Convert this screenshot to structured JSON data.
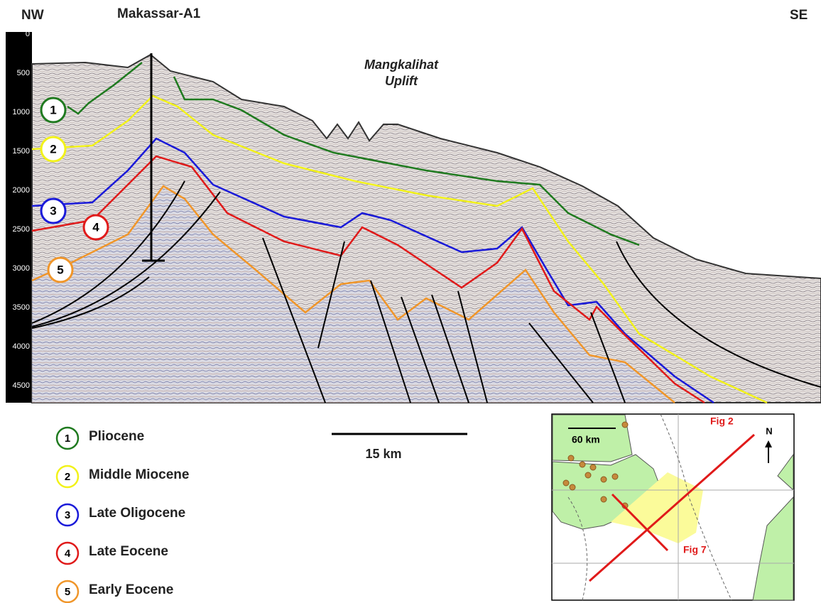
{
  "header": {
    "left": "NW",
    "well": "Makassar-A1",
    "right": "SE"
  },
  "depth_axis": {
    "ticks": [
      0,
      500,
      1000,
      1500,
      2000,
      2500,
      3000,
      3500,
      4000,
      4500
    ]
  },
  "annotation": [
    "Mangkalihat",
    "Uplift"
  ],
  "horizons": [
    {
      "number": 1,
      "name": "Pliocene",
      "color": "#1f7a1f"
    },
    {
      "number": 2,
      "name": "Middle Miocene",
      "color": "#f2f21a"
    },
    {
      "number": 3,
      "name": "Late Oligocene",
      "color": "#1a1ad9"
    },
    {
      "number": 4,
      "name": "Late Eocene",
      "color": "#e01a1a"
    },
    {
      "number": 5,
      "name": "Early Eocene",
      "color": "#f0962a"
    }
  ],
  "scale_bar": "15 km",
  "inset_map": {
    "scale": "60 km",
    "north": "N",
    "lines": [
      "Fig 2",
      "Fig 7"
    ]
  }
}
